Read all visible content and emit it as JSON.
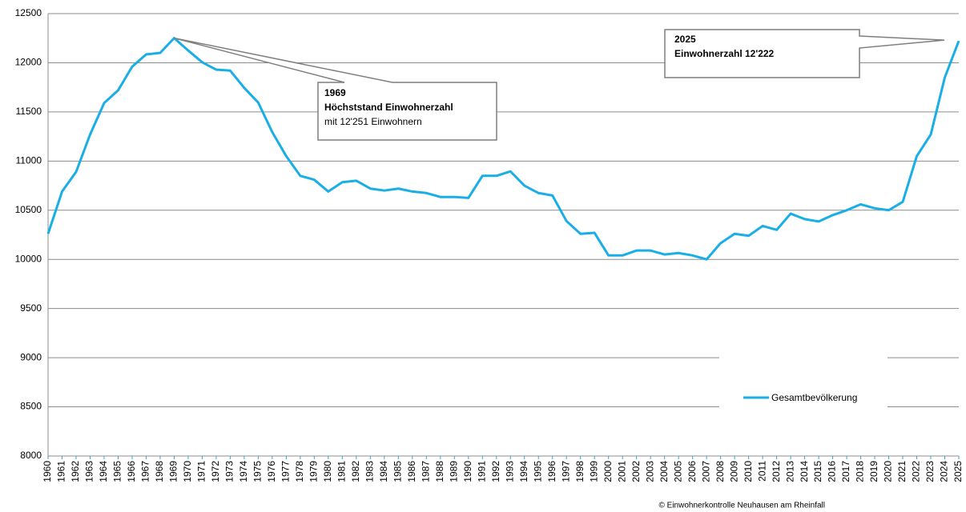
{
  "chart_data": {
    "type": "line",
    "categories": [
      "1960",
      "1961",
      "1962",
      "1963",
      "1964",
      "1965",
      "1966",
      "1967",
      "1968",
      "1969",
      "1970",
      "1971",
      "1972",
      "1973",
      "1974",
      "1975",
      "1976",
      "1977",
      "1978",
      "1979",
      "1980",
      "1981",
      "1982",
      "1983",
      "1984",
      "1985",
      "1986",
      "1987",
      "1988",
      "1989",
      "1990",
      "1991",
      "1992",
      "1993",
      "1994",
      "1995",
      "1996",
      "1997",
      "1998",
      "1999",
      "2000",
      "2001",
      "2002",
      "2003",
      "2004",
      "2005",
      "2006",
      "2007",
      "2008",
      "2009",
      "2010",
      "2011",
      "2012",
      "2013",
      "2014",
      "2015",
      "2016",
      "2017",
      "2018",
      "2019",
      "2020",
      "2021",
      "2022",
      "2023",
      "2024",
      "2025"
    ],
    "series": [
      {
        "name": "Gesamtbevölkerung",
        "color": "#1aaee6",
        "values": [
          10260,
          10690,
          10890,
          11270,
          11590,
          11720,
          11960,
          12085,
          12100,
          12251,
          12125,
          12005,
          11930,
          11920,
          11745,
          11595,
          11295,
          11050,
          10850,
          10810,
          10690,
          10785,
          10800,
          10720,
          10700,
          10720,
          10690,
          10675,
          10635,
          10635,
          10625,
          10850,
          10850,
          10895,
          10750,
          10675,
          10650,
          10390,
          10260,
          10270,
          10040,
          10040,
          10090,
          10090,
          10050,
          10065,
          10040,
          10000,
          10165,
          10260,
          10240,
          10340,
          10300,
          10465,
          10410,
          10385,
          10450,
          10500,
          10560,
          10520,
          10500,
          10585,
          11050,
          11270,
          11850,
          12222
        ]
      }
    ],
    "ylim": [
      8000,
      12500
    ],
    "yticks": [
      8000,
      8500,
      9000,
      9500,
      10000,
      10500,
      11000,
      11500,
      12000,
      12500
    ],
    "grid": true,
    "annotations": [
      {
        "lines": [
          "1969",
          "Höchststand Einwohnerzahl",
          "mit 12'251 Einwohnern"
        ]
      },
      {
        "lines": [
          "2025",
          "Einwohnerzahl 12'222"
        ]
      }
    ],
    "footer": "© Einwohnerkontrolle Neuhausen am Rheinfall"
  }
}
